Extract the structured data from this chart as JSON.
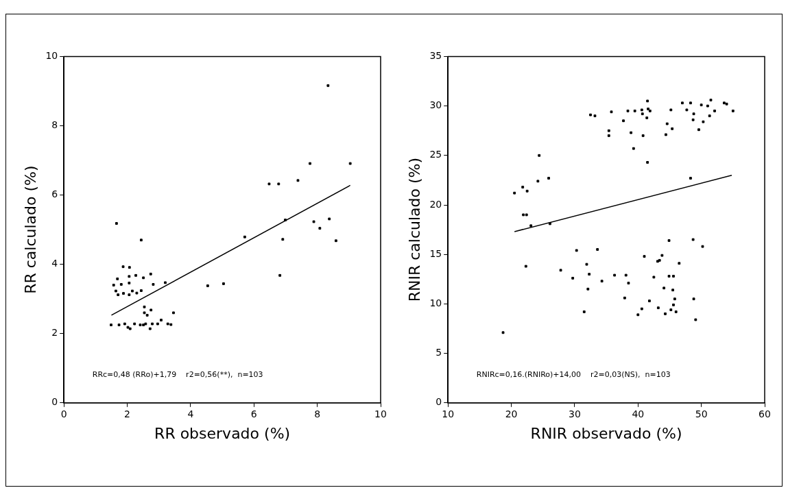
{
  "chart_data": [
    {
      "type": "scatter",
      "xlabel": "RR observado (%)",
      "ylabel": "RR calculado (%)",
      "xlim": [
        0,
        10
      ],
      "ylim": [
        0,
        10
      ],
      "xticks": [
        0,
        2,
        4,
        6,
        8,
        10
      ],
      "yticks": [
        0,
        2,
        4,
        6,
        8,
        10
      ],
      "grid": false,
      "marker": "square",
      "annotations": [
        "RRc=0,48 (RRo)+1,79    r2=0,56(**),  n=103"
      ],
      "series": [
        {
          "color": "#000000",
          "x": [
            1.66,
            2.44,
            8.34,
            7.77,
            9.04,
            6.48,
            6.78,
            7.39,
            5.71,
            6.99,
            7.89,
            8.08,
            8.38,
            6.91,
            8.59,
            6.82,
            4.54,
            5.04,
            3.46,
            3.07,
            1.87,
            2.07,
            2.27,
            2.74,
            2.06,
            1.69,
            2.51,
            1.57,
            1.81,
            2.06,
            2.82,
            3.2,
            1.64,
            1.88,
            2.16,
            2.3,
            2.44,
            1.71,
            2.06,
            2.54,
            2.75,
            2.63,
            2.54,
            1.49,
            1.74,
            1.92,
            2.09,
            2.23,
            2.41,
            2.58,
            2.72,
            2.79,
            2.96,
            3.28,
            3.38,
            2.02,
            2.51
          ],
          "values": [
            5.18,
            4.7,
            9.16,
            6.91,
            6.91,
            6.32,
            6.32,
            6.42,
            4.79,
            5.28,
            5.23,
            5.04,
            5.31,
            4.72,
            4.68,
            3.68,
            3.38,
            3.44,
            2.6,
            2.39,
            3.93,
            3.91,
            3.68,
            3.72,
            3.65,
            3.58,
            3.61,
            3.4,
            3.42,
            3.46,
            3.42,
            3.47,
            3.23,
            3.16,
            3.23,
            3.17,
            3.24,
            3.12,
            3.12,
            2.77,
            2.68,
            2.53,
            2.6,
            2.25,
            2.25,
            2.28,
            2.14,
            2.28,
            2.25,
            2.28,
            2.14,
            2.28,
            2.28,
            2.28,
            2.26,
            2.18,
            2.25
          ]
        },
        {
          "type": "line",
          "color": "#000000",
          "marker": "none",
          "x": [
            1.5,
            9.04
          ],
          "values": [
            2.53,
            6.28
          ]
        }
      ]
    },
    {
      "type": "scatter",
      "xlabel": "RNIR observado (%)",
      "ylabel": "RNIR calculado (%)",
      "xlim": [
        10,
        60
      ],
      "ylim": [
        0,
        35
      ],
      "xticks": [
        10,
        20,
        30,
        40,
        50,
        60
      ],
      "yticks": [
        0,
        5,
        10,
        15,
        20,
        25,
        30,
        35
      ],
      "grid": false,
      "marker": "square",
      "annotations": [
        "RNIRc=0,16.(RNIRo)+14,00    r2=0,03(NS),  n=103"
      ],
      "series": [
        {
          "color": "#000000",
          "x": [
            20.5,
            21.8,
            22.5,
            21.9,
            22.4,
            23.1,
            24.2,
            24.4,
            25.9,
            26.1,
            22.3,
            32.5,
            33.2,
            35.4,
            35.4,
            35.8,
            37.7,
            38.4,
            38.9,
            39.3,
            39.5,
            40.6,
            40.7,
            40.8,
            41.4,
            41.5,
            41.6,
            41.9,
            41.5,
            44.4,
            44.6,
            45.2,
            45.4,
            47.0,
            47.7,
            48.3,
            48.7,
            48.8,
            48.3,
            49.6,
            50.0,
            50.3,
            51.0,
            51.3,
            51.5,
            52.1,
            53.6,
            54.0,
            55.0,
            27.8,
            29.7,
            30.3,
            31.5,
            31.9,
            32.3,
            32.1,
            33.6,
            34.3,
            36.3,
            37.9,
            38.1,
            38.5,
            40.0,
            40.6,
            41.0,
            41.8,
            42.5,
            43.1,
            43.4,
            43.8,
            43.2,
            44.1,
            44.3,
            44.9,
            44.9,
            45.6,
            45.5,
            45.8,
            45.6,
            45.2,
            46.0,
            46.5,
            48.7,
            48.8,
            49.1,
            50.2,
            18.7
          ],
          "values": [
            21.2,
            21.8,
            21.4,
            19.0,
            19.0,
            17.9,
            22.4,
            25.0,
            22.7,
            18.1,
            13.8,
            29.1,
            29.0,
            27.5,
            27.0,
            29.4,
            28.5,
            29.5,
            27.3,
            25.7,
            29.5,
            29.6,
            29.2,
            27.0,
            28.8,
            30.5,
            29.7,
            29.5,
            24.3,
            27.1,
            28.2,
            29.6,
            27.7,
            30.3,
            29.6,
            30.3,
            28.6,
            29.2,
            22.7,
            27.6,
            30.1,
            28.4,
            30.0,
            29.0,
            30.6,
            29.5,
            30.3,
            30.2,
            29.5,
            13.4,
            12.6,
            15.4,
            9.2,
            14.0,
            13.0,
            11.5,
            15.5,
            12.3,
            12.9,
            10.6,
            12.9,
            12.1,
            8.9,
            9.5,
            14.8,
            10.3,
            12.7,
            14.3,
            14.4,
            14.9,
            9.6,
            11.6,
            9.0,
            16.4,
            12.8,
            12.8,
            11.4,
            10.5,
            9.9,
            9.4,
            9.2,
            14.1,
            16.5,
            10.5,
            8.4,
            15.8,
            7.1
          ]
        },
        {
          "type": "line",
          "color": "#000000",
          "marker": "none",
          "x": [
            20.5,
            54.8
          ],
          "values": [
            17.3,
            23.0
          ]
        }
      ]
    }
  ]
}
